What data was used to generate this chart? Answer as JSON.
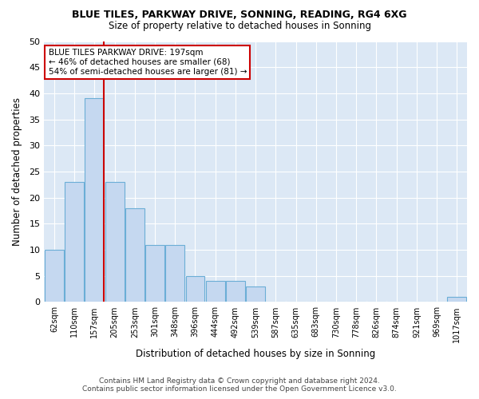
{
  "title": "BLUE TILES, PARKWAY DRIVE, SONNING, READING, RG4 6XG",
  "subtitle": "Size of property relative to detached houses in Sonning",
  "xlabel": "Distribution of detached houses by size in Sonning",
  "ylabel": "Number of detached properties",
  "categories": [
    "62sqm",
    "110sqm",
    "157sqm",
    "205sqm",
    "253sqm",
    "301sqm",
    "348sqm",
    "396sqm",
    "444sqm",
    "492sqm",
    "539sqm",
    "587sqm",
    "635sqm",
    "683sqm",
    "730sqm",
    "778sqm",
    "826sqm",
    "874sqm",
    "921sqm",
    "969sqm",
    "1017sqm"
  ],
  "values": [
    10,
    23,
    39,
    23,
    18,
    11,
    11,
    5,
    4,
    4,
    3,
    0,
    0,
    0,
    0,
    0,
    0,
    0,
    0,
    0,
    1
  ],
  "bar_color": "#c5d8f0",
  "bar_edge_color": "#6baed6",
  "reference_line_color": "#cc0000",
  "annotation_line1": "BLUE TILES PARKWAY DRIVE: 197sqm",
  "annotation_line2": "← 46% of detached houses are smaller (68)",
  "annotation_line3": "54% of semi-detached houses are larger (81) →",
  "annotation_box_color": "#ffffff",
  "annotation_box_edge_color": "#cc0000",
  "background_color": "#dce8f5",
  "ylim": [
    0,
    50
  ],
  "yticks": [
    0,
    5,
    10,
    15,
    20,
    25,
    30,
    35,
    40,
    45,
    50
  ],
  "footer_line1": "Contains HM Land Registry data © Crown copyright and database right 2024.",
  "footer_line2": "Contains public sector information licensed under the Open Government Licence v3.0."
}
